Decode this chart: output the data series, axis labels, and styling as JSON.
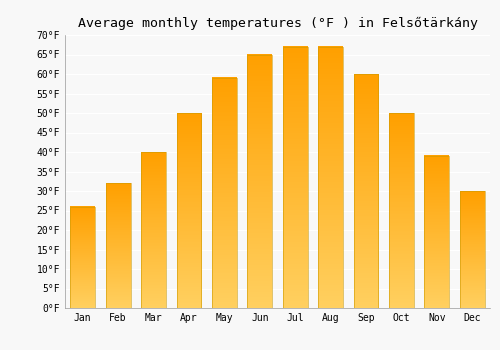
{
  "title": "Average monthly temperatures (°F ) in Felsőtärkány",
  "months": [
    "Jan",
    "Feb",
    "Mar",
    "Apr",
    "May",
    "Jun",
    "Jul",
    "Aug",
    "Sep",
    "Oct",
    "Nov",
    "Dec"
  ],
  "values": [
    26,
    32,
    40,
    50,
    59,
    65,
    67,
    67,
    60,
    50,
    39,
    30
  ],
  "ylim": [
    0,
    70
  ],
  "yticks": [
    0,
    5,
    10,
    15,
    20,
    25,
    30,
    35,
    40,
    45,
    50,
    55,
    60,
    65,
    70
  ],
  "bar_color": "#FFAA00",
  "bar_edge_color": "#E8A000",
  "background_color": "#f8f8f8",
  "plot_bg_color": "#f8f8f8",
  "grid_color": "#ffffff",
  "title_fontsize": 9.5,
  "tick_fontsize": 7,
  "bar_width": 0.7
}
